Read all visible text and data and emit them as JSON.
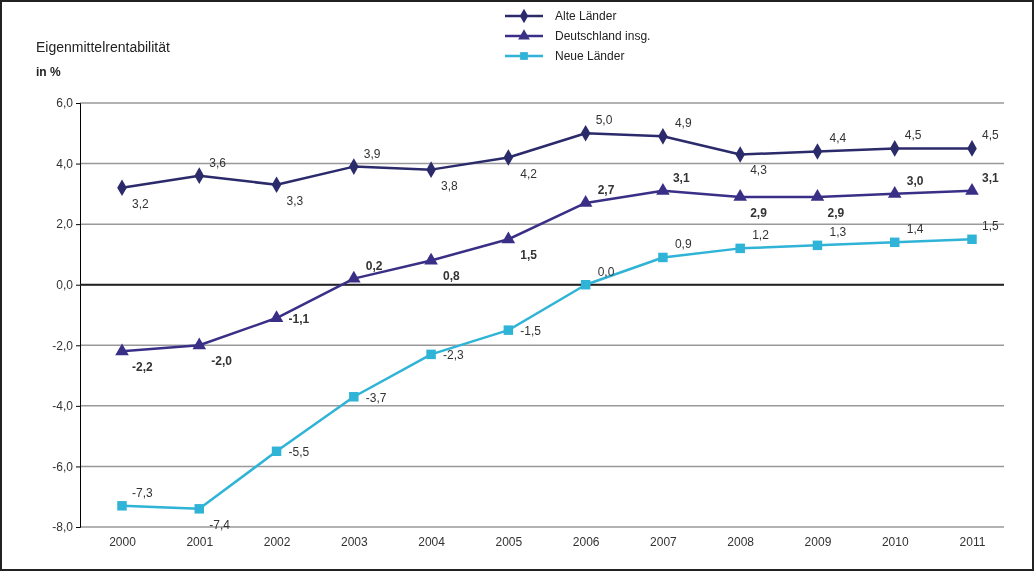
{
  "chart_data": {
    "type": "line",
    "title": "Eigenmittelrentabilität",
    "ylabel": "in %",
    "categories": [
      "2000",
      "2001",
      "2002",
      "2003",
      "2004",
      "2005",
      "2006",
      "2007",
      "2008",
      "2009",
      "2010",
      "2011"
    ],
    "ylim": [
      -8,
      6
    ],
    "yticks": [
      {
        "value": -8,
        "label": "-8,0"
      },
      {
        "value": -6,
        "label": "-6,0"
      },
      {
        "value": -4,
        "label": "-4,0"
      },
      {
        "value": -2,
        "label": "-2,0"
      },
      {
        "value": 0,
        "label": "0,0"
      },
      {
        "value": 2,
        "label": "2,0"
      },
      {
        "value": 4,
        "label": "4,0"
      },
      {
        "value": 6,
        "label": "6,0"
      }
    ],
    "grid": "y",
    "legend": "top",
    "line_style": "solid",
    "series": [
      {
        "name": "Alte Länder",
        "color": "#2b2a6b",
        "marker": "diamond",
        "values": [
          3.2,
          3.6,
          3.3,
          3.9,
          3.8,
          4.2,
          5.0,
          4.9,
          4.3,
          4.4,
          4.5,
          4.5
        ],
        "value_labels": [
          "3,2",
          "3,6",
          "3,3",
          "3,9",
          "3,8",
          "4,2",
          "5,0",
          "4,9",
          "4,3",
          "4,4",
          "4,5",
          "4,5"
        ]
      },
      {
        "name": "Deutschland insg.",
        "color": "#3a2f86",
        "marker": "triangle",
        "values": [
          -2.2,
          -2.0,
          -1.1,
          0.2,
          0.8,
          1.5,
          2.7,
          3.1,
          2.9,
          2.9,
          3.0,
          3.1
        ],
        "value_labels": [
          "-2,2",
          "-2,0",
          "-1,1",
          "0,2",
          "0,8",
          "1,5",
          "2,7",
          "3,1",
          "2,9",
          "2,9",
          "3,0",
          "3,1"
        ]
      },
      {
        "name": "Neue Länder",
        "color": "#2fb3d6",
        "marker": "square",
        "values": [
          -7.3,
          -7.4,
          -5.5,
          -3.7,
          -2.3,
          -1.5,
          0.0,
          0.9,
          1.2,
          1.3,
          1.4,
          1.5
        ],
        "value_labels": [
          "-7,3",
          "-7,4",
          "-5,5",
          "-3,7",
          "-2,3",
          "-1,5",
          "0,0",
          "0,9",
          "1,2",
          "1,3",
          "1,4",
          "1,5"
        ]
      }
    ]
  }
}
